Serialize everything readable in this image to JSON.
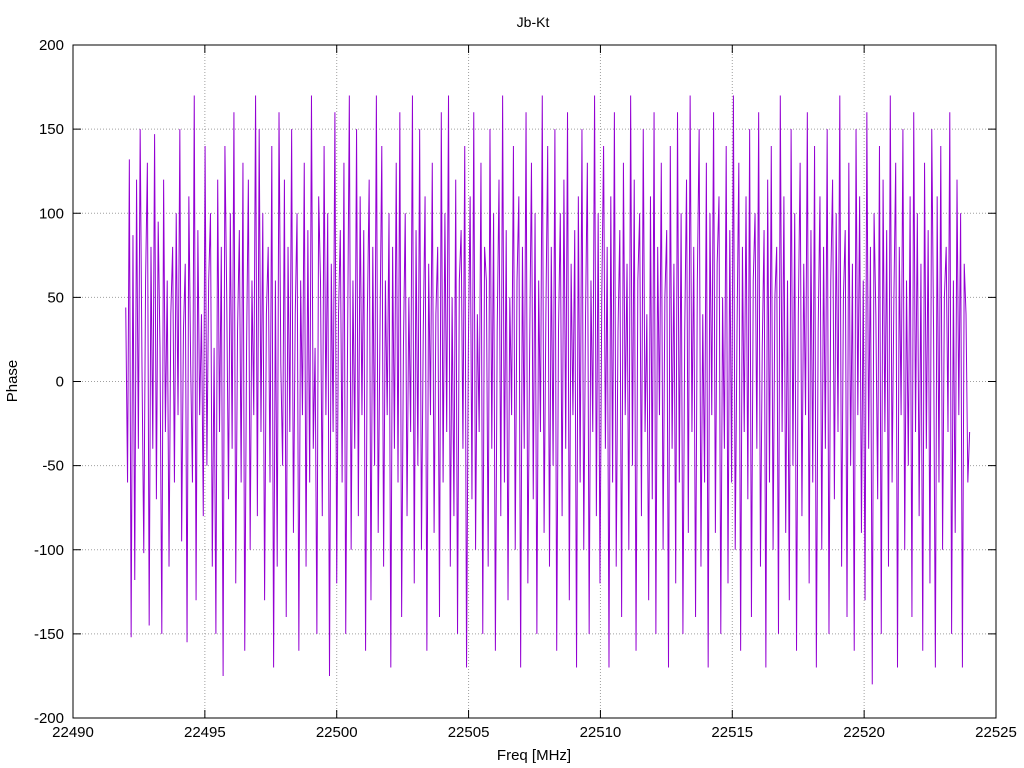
{
  "chart_data": {
    "type": "line",
    "title": "Jb-Kt",
    "xlabel": "Freq [MHz]",
    "ylabel": "Phase",
    "xlim": [
      22490,
      22525
    ],
    "ylim": [
      -200,
      200
    ],
    "xticks": [
      22490,
      22495,
      22500,
      22505,
      22510,
      22515,
      22520,
      22525
    ],
    "yticks": [
      -200,
      -150,
      -100,
      -50,
      0,
      50,
      100,
      150,
      200
    ],
    "grid": true,
    "line_color": "#9400d3",
    "series": [
      {
        "x_start": 22492.0,
        "x_end": 22524.0,
        "values": [
          44,
          -60,
          132,
          -152,
          87,
          -118,
          120,
          -40,
          150,
          10,
          -102,
          60,
          130,
          -145,
          80,
          -40,
          147,
          -70,
          95,
          20,
          -150,
          120,
          -30,
          60,
          -110,
          40,
          80,
          -60,
          100,
          -20,
          150,
          -95,
          30,
          70,
          -155,
          110,
          10,
          -60,
          170,
          -130,
          90,
          -20,
          40,
          -80,
          140,
          -50,
          60,
          100,
          -110,
          20,
          -150,
          120,
          -30,
          80,
          -175,
          140,
          50,
          -70,
          100,
          -40,
          160,
          -120,
          30,
          90,
          -60,
          130,
          -160,
          20,
          120,
          -100,
          60,
          -20,
          170,
          -80,
          150,
          -30,
          100,
          -130,
          40,
          80,
          -60,
          140,
          -170,
          60,
          -110,
          160,
          10,
          -50,
          120,
          -140,
          80,
          -30,
          150,
          -90,
          40,
          100,
          -160,
          60,
          -20,
          130,
          -110,
          90,
          -60,
          170,
          -40,
          20,
          -150,
          110,
          60,
          -80,
          140,
          -20,
          100,
          -175,
          70,
          -30,
          160,
          -120,
          40,
          90,
          -60,
          130,
          -150,
          20,
          170,
          -100,
          60,
          -40,
          150,
          -80,
          110,
          -20,
          90,
          -160,
          40,
          120,
          -130,
          80,
          -50,
          170,
          -90,
          30,
          140,
          -110,
          60,
          -20,
          100,
          -170,
          80,
          -40,
          130,
          -60,
          160,
          -140,
          20,
          100,
          -80,
          50,
          -30,
          170,
          -120,
          90,
          -50,
          150,
          -100,
          30,
          110,
          -160,
          70,
          -20,
          130,
          -90,
          40,
          80,
          -140,
          160,
          -60,
          100,
          -30,
          170,
          -110,
          50,
          -80,
          120,
          -150,
          60,
          90,
          -40,
          140,
          -170,
          20,
          110,
          -70,
          160,
          -100,
          40,
          -30,
          130,
          -150,
          80,
          60,
          -110,
          150,
          -40,
          100,
          -160,
          30,
          120,
          -80,
          170,
          -60,
          90,
          -130,
          50,
          -20,
          140,
          -100,
          60,
          110,
          -170,
          80,
          -40,
          160,
          -120,
          20,
          130,
          -70,
          100,
          -150,
          60,
          -30,
          170,
          -90,
          40,
          140,
          -110,
          80,
          -50,
          150,
          -160,
          30,
          100,
          -80,
          120,
          -40,
          160,
          -130,
          70,
          -20,
          90,
          -170,
          110,
          -60,
          150,
          -100,
          40,
          130,
          -150,
          60,
          -30,
          170,
          -80,
          100,
          -120,
          50,
          140,
          -40,
          80,
          -170,
          110,
          -60,
          160,
          -110,
          30,
          90,
          -140,
          130,
          -20,
          70,
          -100,
          170,
          -50,
          120,
          -160,
          60,
          100,
          -80,
          150,
          -30,
          40,
          -130,
          110,
          -70,
          160,
          -150,
          80,
          -20,
          130,
          -100,
          50,
          90,
          -170,
          140,
          -40,
          70,
          -120,
          160,
          -60,
          100,
          -150,
          30,
          120,
          -90,
          170,
          -30,
          80,
          -140,
          60,
          150,
          -110,
          40,
          -60,
          130,
          -170,
          100,
          -20,
          160,
          -90,
          70,
          110,
          -150,
          50,
          -40,
          140,
          -120,
          90,
          -60,
          170,
          -100,
          30,
          130,
          -160,
          80,
          -30,
          110,
          -70,
          150,
          -140,
          60,
          100,
          -40,
          160,
          -110,
          20,
          90,
          -170,
          120,
          -60,
          140,
          -100,
          50,
          80,
          -150,
          170,
          -30,
          110,
          -90,
          60,
          -130,
          150,
          -50,
          100,
          -160,
          40,
          130,
          -80,
          70,
          -20,
          160,
          -120,
          90,
          -60,
          140,
          -170,
          30,
          110,
          -100,
          80,
          -40,
          150,
          -150,
          60,
          120,
          -70,
          100,
          -30,
          170,
          -110,
          50,
          90,
          -140,
          130,
          -50,
          70,
          -160,
          150,
          -20,
          110,
          -90,
          60,
          -130,
          160,
          -40,
          80,
          -180,
          100,
          40,
          -70,
          140,
          -150,
          120,
          -30,
          90,
          -110,
          170,
          -60,
          50,
          130,
          -170,
          80,
          -20,
          150,
          -100,
          60,
          -50,
          110,
          -140,
          160,
          -30,
          100,
          -80,
          70,
          -160,
          130,
          -40,
          90,
          -120,
          150,
          30,
          -170,
          110,
          -60,
          140,
          -100,
          50,
          80,
          -30,
          160,
          -150,
          60,
          -90,
          120,
          -20,
          100,
          -170,
          70,
          40,
          -60,
          -30
        ]
      }
    ]
  }
}
